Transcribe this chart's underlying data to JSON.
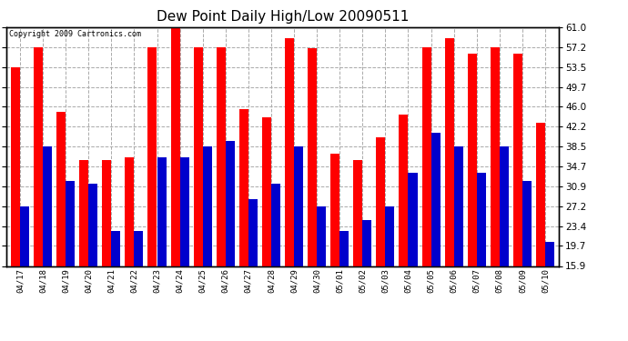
{
  "title": "Dew Point Daily High/Low 20090511",
  "copyright": "Copyright 2009 Cartronics.com",
  "dates": [
    "04/17",
    "04/18",
    "04/19",
    "04/20",
    "04/21",
    "04/22",
    "04/23",
    "04/24",
    "04/25",
    "04/26",
    "04/27",
    "04/28",
    "04/29",
    "04/30",
    "05/01",
    "05/02",
    "05/03",
    "05/04",
    "05/05",
    "05/06",
    "05/07",
    "05/08",
    "05/09",
    "05/10"
  ],
  "highs": [
    53.5,
    57.2,
    45.0,
    36.0,
    36.0,
    36.5,
    57.2,
    61.0,
    57.2,
    57.2,
    45.5,
    44.0,
    59.0,
    57.0,
    37.2,
    36.0,
    40.2,
    44.5,
    57.2,
    59.0,
    56.0,
    57.2,
    56.0,
    43.0
  ],
  "lows": [
    27.2,
    38.5,
    32.0,
    31.5,
    22.5,
    22.5,
    36.5,
    36.5,
    38.5,
    39.5,
    28.5,
    31.5,
    38.5,
    27.2,
    22.5,
    24.5,
    27.2,
    33.5,
    41.0,
    38.5,
    33.5,
    38.5,
    32.0,
    20.5
  ],
  "high_color": "#ff0000",
  "low_color": "#0000cc",
  "bg_color": "#ffffff",
  "grid_color": "#aaaaaa",
  "yticks": [
    15.9,
    19.7,
    23.4,
    27.2,
    30.9,
    34.7,
    38.5,
    42.2,
    46.0,
    49.7,
    53.5,
    57.2,
    61.0
  ],
  "ymin": 15.9,
  "ymax": 61.0
}
